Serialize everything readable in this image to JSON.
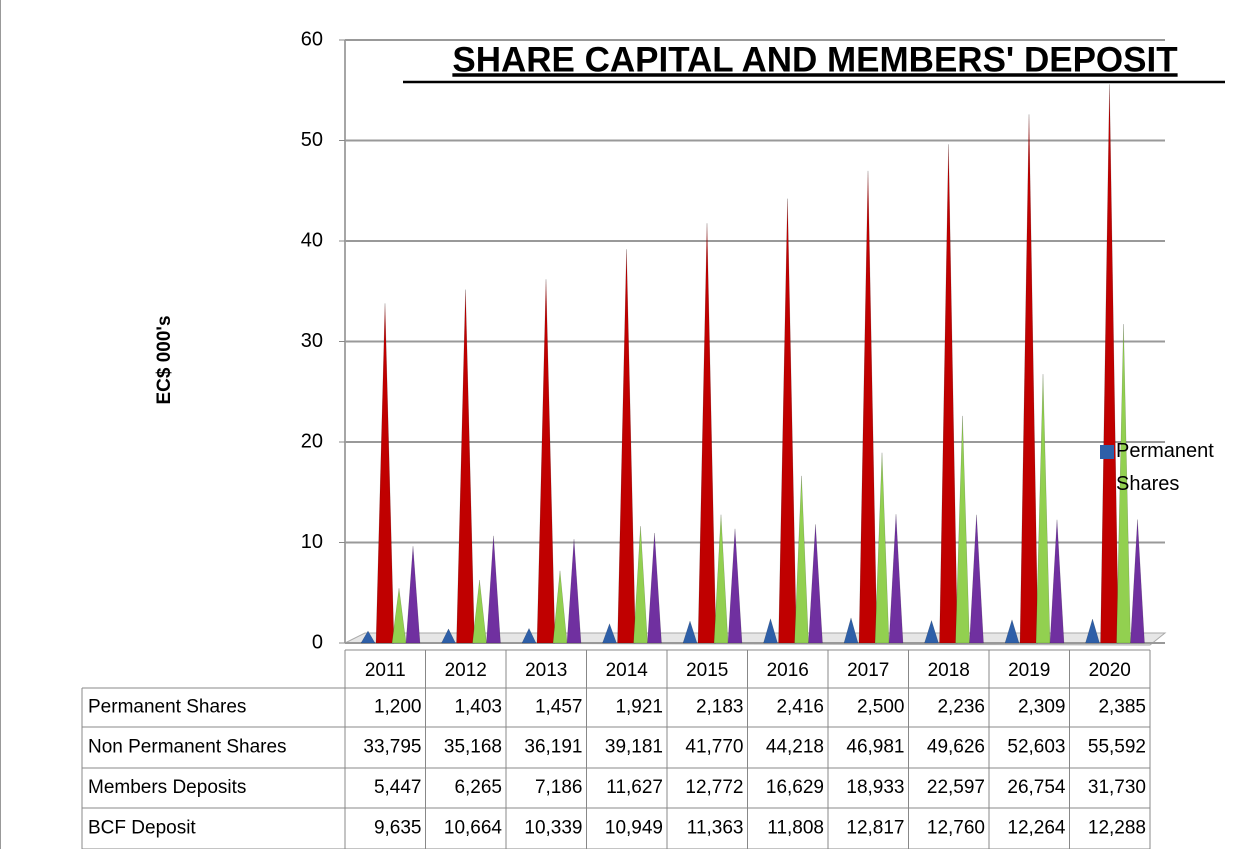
{
  "chart_data": {
    "type": "cone",
    "title": "SHARE CAPITAL AND MEMBERS' DEPOSIT",
    "y_axis_label": "EC$ 000's",
    "categories": [
      "2011",
      "2012",
      "2013",
      "2014",
      "2015",
      "2016",
      "2017",
      "2018",
      "2019",
      "2020"
    ],
    "series": [
      {
        "name": "Permanent Shares",
        "color": "#2e5fa8",
        "values": [
          1.2,
          1.403,
          1.457,
          1.921,
          2.183,
          2.416,
          2.5,
          2.236,
          2.309,
          2.385
        ],
        "value_labels": [
          "1,200",
          "1,403",
          "1,457",
          "1,921",
          "2,183",
          "2,416",
          "2,500",
          "2,236",
          "2,309",
          "2,385"
        ]
      },
      {
        "name": "Non Permanent Shares",
        "color": "#c00000",
        "values": [
          33.795,
          35.168,
          36.191,
          39.181,
          41.77,
          44.218,
          46.981,
          49.626,
          52.603,
          55.592
        ],
        "value_labels": [
          "33,795",
          "35,168",
          "36,191",
          "39,181",
          "41,770",
          "44,218",
          "46,981",
          "49,626",
          "52,603",
          "55,592"
        ]
      },
      {
        "name": "Members Deposits",
        "color": "#92d050",
        "values": [
          5.447,
          6.265,
          7.186,
          11.627,
          12.772,
          16.629,
          18.933,
          22.597,
          26.754,
          31.73
        ],
        "value_labels": [
          "5,447",
          "6,265",
          "7,186",
          "11,627",
          "12,772",
          "16,629",
          "18,933",
          "22,597",
          "26,754",
          "31,730"
        ]
      },
      {
        "name": "BCF Deposit",
        "color": "#7030a0",
        "values": [
          9.635,
          10.664,
          10.339,
          10.949,
          11.363,
          11.808,
          12.817,
          12.76,
          12.264,
          12.288
        ],
        "value_labels": [
          "9,635",
          "10,664",
          "10,339",
          "10,949",
          "11,363",
          "11,808",
          "12,817",
          "12,760",
          "12,264",
          "12,288"
        ]
      }
    ],
    "ylim": [
      0,
      60
    ],
    "yticks": [
      0,
      10,
      20,
      30,
      40,
      50,
      60
    ],
    "grid": true,
    "legend_entries": [
      0
    ]
  }
}
